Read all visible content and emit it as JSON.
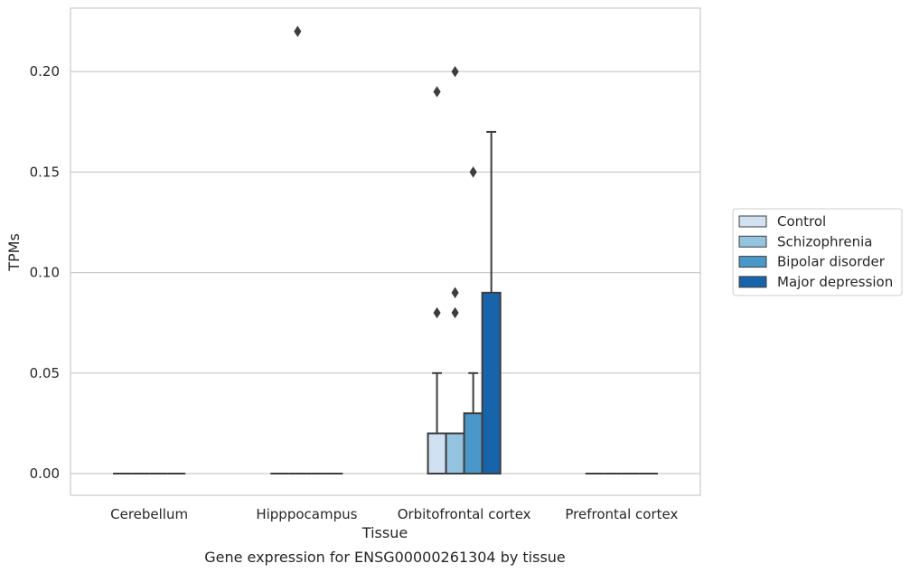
{
  "chart_data": {
    "type": "box",
    "title": "",
    "xlabel": "Tissue",
    "ylabel": "TPMs",
    "caption": "Gene expression for ENSG00000261304 by tissue",
    "ylim": [
      -0.011,
      0.232
    ],
    "yticks": [
      0.0,
      0.05,
      0.1,
      0.15,
      0.2
    ],
    "ytick_labels": [
      "0.00",
      "0.05",
      "0.10",
      "0.15",
      "0.20"
    ],
    "grid": "horizontal",
    "legend_position": "right",
    "categories": [
      "Cerebellum",
      "Hipppocampus",
      "Orbitofrontal cortex",
      "Prefrontal cortex"
    ],
    "series": [
      {
        "name": "Control",
        "color": "#d0e1f2",
        "boxes": [
          {
            "category": "Cerebellum",
            "whisker_low": 0,
            "q1": 0,
            "median": 0,
            "q3": 0,
            "whisker_high": 0,
            "outliers": []
          },
          {
            "category": "Hipppocampus",
            "whisker_low": 0,
            "q1": 0,
            "median": 0,
            "q3": 0,
            "whisker_high": 0,
            "outliers": []
          },
          {
            "category": "Orbitofrontal cortex",
            "whisker_low": 0,
            "q1": 0,
            "median": 0,
            "q3": 0.02,
            "whisker_high": 0.05,
            "outliers": [
              0.08,
              0.19
            ]
          },
          {
            "category": "Prefrontal cortex",
            "whisker_low": 0,
            "q1": 0,
            "median": 0,
            "q3": 0,
            "whisker_high": 0,
            "outliers": []
          }
        ]
      },
      {
        "name": "Schizophrenia",
        "color": "#94c4df",
        "boxes": [
          {
            "category": "Cerebellum",
            "whisker_low": 0,
            "q1": 0,
            "median": 0,
            "q3": 0,
            "whisker_high": 0,
            "outliers": []
          },
          {
            "category": "Hipppocampus",
            "whisker_low": 0,
            "q1": 0,
            "median": 0,
            "q3": 0,
            "whisker_high": 0,
            "outliers": [
              0.22
            ]
          },
          {
            "category": "Orbitofrontal cortex",
            "whisker_low": 0,
            "q1": 0,
            "median": 0,
            "q3": 0.02,
            "whisker_high": 0.02,
            "outliers": [
              0.08,
              0.09,
              0.2
            ]
          },
          {
            "category": "Prefrontal cortex",
            "whisker_low": 0,
            "q1": 0,
            "median": 0,
            "q3": 0,
            "whisker_high": 0,
            "outliers": []
          }
        ]
      },
      {
        "name": "Bipolar disorder",
        "color": "#4a98c9",
        "boxes": [
          {
            "category": "Cerebellum",
            "whisker_low": 0,
            "q1": 0,
            "median": 0,
            "q3": 0,
            "whisker_high": 0,
            "outliers": []
          },
          {
            "category": "Hipppocampus",
            "whisker_low": 0,
            "q1": 0,
            "median": 0,
            "q3": 0,
            "whisker_high": 0,
            "outliers": []
          },
          {
            "category": "Orbitofrontal cortex",
            "whisker_low": 0,
            "q1": 0,
            "median": 0,
            "q3": 0.03,
            "whisker_high": 0.05,
            "outliers": [
              0.15
            ]
          },
          {
            "category": "Prefrontal cortex",
            "whisker_low": 0,
            "q1": 0,
            "median": 0,
            "q3": 0,
            "whisker_high": 0,
            "outliers": []
          }
        ]
      },
      {
        "name": "Major depression",
        "color": "#1764ab",
        "boxes": [
          {
            "category": "Cerebellum",
            "whisker_low": 0,
            "q1": 0,
            "median": 0,
            "q3": 0,
            "whisker_high": 0,
            "outliers": []
          },
          {
            "category": "Hipppocampus",
            "whisker_low": 0,
            "q1": 0,
            "median": 0,
            "q3": 0,
            "whisker_high": 0,
            "outliers": []
          },
          {
            "category": "Orbitofrontal cortex",
            "whisker_low": 0,
            "q1": 0,
            "median": 0,
            "q3": 0.09,
            "whisker_high": 0.17,
            "outliers": []
          },
          {
            "category": "Prefrontal cortex",
            "whisker_low": 0,
            "q1": 0,
            "median": 0,
            "q3": 0,
            "whisker_high": 0,
            "outliers": []
          }
        ]
      }
    ]
  }
}
